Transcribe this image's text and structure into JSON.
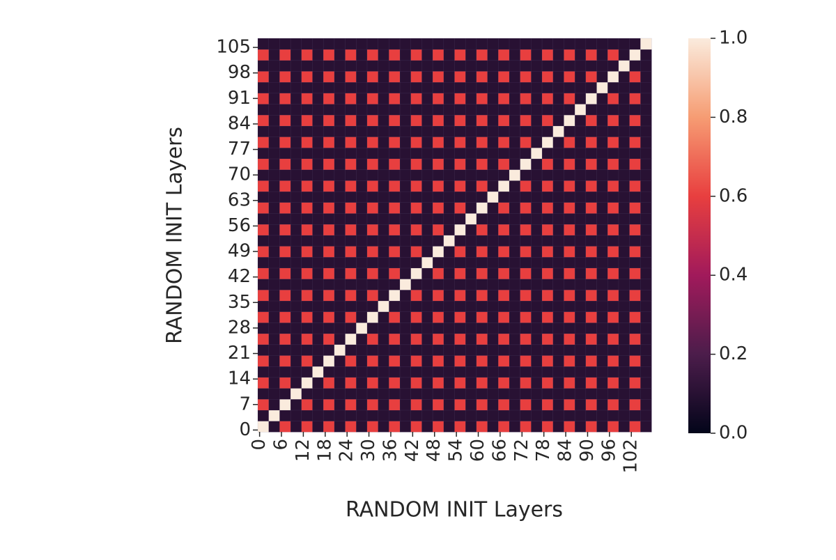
{
  "chart_data": {
    "type": "heatmap",
    "xlabel": "RANDOM INIT Layers",
    "ylabel": "RANDOM INIT Layers",
    "colormap": "rocket",
    "clim": [
      0,
      1
    ],
    "cticks": [
      {
        "value": 0,
        "label": "0.0"
      },
      0.2,
      0.4,
      0.6,
      0.8,
      {
        "value": 1,
        "label": "1.0"
      }
    ],
    "xlim": [
      0,
      108
    ],
    "ylim": [
      0,
      108
    ],
    "xticks": [
      0,
      6,
      12,
      18,
      24,
      30,
      36,
      42,
      48,
      54,
      60,
      66,
      72,
      78,
      84,
      90,
      96,
      102
    ],
    "yticks": [
      0,
      7,
      14,
      21,
      28,
      35,
      42,
      49,
      56,
      63,
      70,
      77,
      84,
      91,
      98,
      105
    ],
    "z": [
      [
        1,
        0.1,
        0.6,
        0.1,
        0.6,
        0.1,
        0.6,
        0.1,
        0.6,
        0.1,
        0.6,
        0.1,
        0.6,
        0.1,
        0.6,
        0.1,
        0.6,
        0.1,
        0.6,
        0.1,
        0.6,
        0.1,
        0.6,
        0.1,
        0.6,
        0.1,
        0.6,
        0.1,
        0.6,
        0.1,
        0.6,
        0.1,
        0.6,
        0.1,
        0.6,
        0.1
      ],
      [
        0.1,
        1,
        0.1,
        0.1,
        0.1,
        0.1,
        0.1,
        0.1,
        0.1,
        0.1,
        0.1,
        0.1,
        0.1,
        0.1,
        0.1,
        0.1,
        0.1,
        0.1,
        0.1,
        0.1,
        0.1,
        0.1,
        0.1,
        0.1,
        0.1,
        0.1,
        0.1,
        0.1,
        0.1,
        0.1,
        0.1,
        0.1,
        0.1,
        0.1,
        0.1,
        0.1
      ],
      [
        0.6,
        0.1,
        1,
        0.1,
        0.6,
        0.1,
        0.6,
        0.1,
        0.6,
        0.1,
        0.6,
        0.1,
        0.6,
        0.1,
        0.6,
        0.1,
        0.6,
        0.1,
        0.6,
        0.1,
        0.6,
        0.1,
        0.6,
        0.1,
        0.6,
        0.1,
        0.6,
        0.1,
        0.6,
        0.1,
        0.6,
        0.1,
        0.6,
        0.1,
        0.6,
        0.1
      ],
      [
        0.1,
        0.1,
        0.1,
        1,
        0.1,
        0.1,
        0.1,
        0.1,
        0.1,
        0.1,
        0.1,
        0.1,
        0.1,
        0.1,
        0.1,
        0.1,
        0.1,
        0.1,
        0.1,
        0.1,
        0.1,
        0.1,
        0.1,
        0.1,
        0.1,
        0.1,
        0.1,
        0.1,
        0.1,
        0.1,
        0.1,
        0.1,
        0.1,
        0.1,
        0.1,
        0.1
      ],
      [
        0.6,
        0.1,
        0.6,
        0.1,
        1,
        0.1,
        0.6,
        0.1,
        0.6,
        0.1,
        0.6,
        0.1,
        0.6,
        0.1,
        0.6,
        0.1,
        0.6,
        0.1,
        0.6,
        0.1,
        0.6,
        0.1,
        0.6,
        0.1,
        0.6,
        0.1,
        0.6,
        0.1,
        0.6,
        0.1,
        0.6,
        0.1,
        0.6,
        0.1,
        0.6,
        0.1
      ],
      [
        0.1,
        0.1,
        0.1,
        0.1,
        0.1,
        1,
        0.1,
        0.1,
        0.1,
        0.1,
        0.1,
        0.1,
        0.1,
        0.1,
        0.1,
        0.1,
        0.1,
        0.1,
        0.1,
        0.1,
        0.1,
        0.1,
        0.1,
        0.1,
        0.1,
        0.1,
        0.1,
        0.1,
        0.1,
        0.1,
        0.1,
        0.1,
        0.1,
        0.1,
        0.1,
        0.1
      ],
      [
        0.6,
        0.1,
        0.6,
        0.1,
        0.6,
        0.1,
        1,
        0.1,
        0.6,
        0.1,
        0.6,
        0.1,
        0.6,
        0.1,
        0.6,
        0.1,
        0.6,
        0.1,
        0.6,
        0.1,
        0.6,
        0.1,
        0.6,
        0.1,
        0.6,
        0.1,
        0.6,
        0.1,
        0.6,
        0.1,
        0.6,
        0.1,
        0.6,
        0.1,
        0.6,
        0.1
      ],
      [
        0.1,
        0.1,
        0.1,
        0.1,
        0.1,
        0.1,
        0.1,
        1,
        0.1,
        0.1,
        0.1,
        0.1,
        0.1,
        0.1,
        0.1,
        0.1,
        0.1,
        0.1,
        0.1,
        0.1,
        0.1,
        0.1,
        0.1,
        0.1,
        0.1,
        0.1,
        0.1,
        0.1,
        0.1,
        0.1,
        0.1,
        0.1,
        0.1,
        0.1,
        0.1,
        0.1
      ],
      [
        0.6,
        0.1,
        0.6,
        0.1,
        0.6,
        0.1,
        0.6,
        0.1,
        1,
        0.1,
        0.6,
        0.1,
        0.6,
        0.1,
        0.6,
        0.1,
        0.6,
        0.1,
        0.6,
        0.1,
        0.6,
        0.1,
        0.6,
        0.1,
        0.6,
        0.1,
        0.6,
        0.1,
        0.6,
        0.1,
        0.6,
        0.1,
        0.6,
        0.1,
        0.6,
        0.1
      ],
      [
        0.1,
        0.1,
        0.1,
        0.1,
        0.1,
        0.1,
        0.1,
        0.1,
        0.1,
        1,
        0.1,
        0.1,
        0.1,
        0.1,
        0.1,
        0.1,
        0.1,
        0.1,
        0.1,
        0.1,
        0.1,
        0.1,
        0.1,
        0.1,
        0.1,
        0.1,
        0.1,
        0.1,
        0.1,
        0.1,
        0.1,
        0.1,
        0.1,
        0.1,
        0.1,
        0.1
      ],
      [
        0.6,
        0.1,
        0.6,
        0.1,
        0.6,
        0.1,
        0.6,
        0.1,
        0.6,
        0.1,
        1,
        0.1,
        0.6,
        0.1,
        0.6,
        0.1,
        0.6,
        0.1,
        0.6,
        0.1,
        0.6,
        0.1,
        0.6,
        0.1,
        0.6,
        0.1,
        0.6,
        0.1,
        0.6,
        0.1,
        0.6,
        0.1,
        0.6,
        0.1,
        0.6,
        0.1
      ],
      [
        0.1,
        0.1,
        0.1,
        0.1,
        0.1,
        0.1,
        0.1,
        0.1,
        0.1,
        0.1,
        0.1,
        1,
        0.1,
        0.1,
        0.1,
        0.1,
        0.1,
        0.1,
        0.1,
        0.1,
        0.1,
        0.1,
        0.1,
        0.1,
        0.1,
        0.1,
        0.1,
        0.1,
        0.1,
        0.1,
        0.1,
        0.1,
        0.1,
        0.1,
        0.1,
        0.1
      ],
      [
        0.6,
        0.1,
        0.6,
        0.1,
        0.6,
        0.1,
        0.6,
        0.1,
        0.6,
        0.1,
        0.6,
        0.1,
        1,
        0.1,
        0.6,
        0.1,
        0.6,
        0.1,
        0.6,
        0.1,
        0.6,
        0.1,
        0.6,
        0.1,
        0.6,
        0.1,
        0.6,
        0.1,
        0.6,
        0.1,
        0.6,
        0.1,
        0.6,
        0.1,
        0.6,
        0.1
      ],
      [
        0.1,
        0.1,
        0.1,
        0.1,
        0.1,
        0.1,
        0.1,
        0.1,
        0.1,
        0.1,
        0.1,
        0.1,
        0.1,
        1,
        0.1,
        0.1,
        0.1,
        0.1,
        0.1,
        0.1,
        0.1,
        0.1,
        0.1,
        0.1,
        0.1,
        0.1,
        0.1,
        0.1,
        0.1,
        0.1,
        0.1,
        0.1,
        0.1,
        0.1,
        0.1,
        0.1
      ],
      [
        0.6,
        0.1,
        0.6,
        0.1,
        0.6,
        0.1,
        0.6,
        0.1,
        0.6,
        0.1,
        0.6,
        0.1,
        0.6,
        0.1,
        1,
        0.1,
        0.6,
        0.1,
        0.6,
        0.1,
        0.6,
        0.1,
        0.6,
        0.1,
        0.6,
        0.1,
        0.6,
        0.1,
        0.6,
        0.1,
        0.6,
        0.1,
        0.6,
        0.1,
        0.6,
        0.1
      ],
      [
        0.1,
        0.1,
        0.1,
        0.1,
        0.1,
        0.1,
        0.1,
        0.1,
        0.1,
        0.1,
        0.1,
        0.1,
        0.1,
        0.1,
        0.1,
        1,
        0.1,
        0.1,
        0.1,
        0.1,
        0.1,
        0.1,
        0.1,
        0.1,
        0.1,
        0.1,
        0.1,
        0.1,
        0.1,
        0.1,
        0.1,
        0.1,
        0.1,
        0.1,
        0.1,
        0.1
      ],
      [
        0.6,
        0.1,
        0.6,
        0.1,
        0.6,
        0.1,
        0.6,
        0.1,
        0.6,
        0.1,
        0.6,
        0.1,
        0.6,
        0.1,
        0.6,
        0.1,
        1,
        0.1,
        0.6,
        0.1,
        0.6,
        0.1,
        0.6,
        0.1,
        0.6,
        0.1,
        0.6,
        0.1,
        0.6,
        0.1,
        0.6,
        0.1,
        0.6,
        0.1,
        0.6,
        0.1
      ],
      [
        0.1,
        0.1,
        0.1,
        0.1,
        0.1,
        0.1,
        0.1,
        0.1,
        0.1,
        0.1,
        0.1,
        0.1,
        0.1,
        0.1,
        0.1,
        0.1,
        0.1,
        1,
        0.1,
        0.1,
        0.1,
        0.1,
        0.1,
        0.1,
        0.1,
        0.1,
        0.1,
        0.1,
        0.1,
        0.1,
        0.1,
        0.1,
        0.1,
        0.1,
        0.1,
        0.1
      ],
      [
        0.6,
        0.1,
        0.6,
        0.1,
        0.6,
        0.1,
        0.6,
        0.1,
        0.6,
        0.1,
        0.6,
        0.1,
        0.6,
        0.1,
        0.6,
        0.1,
        0.6,
        0.1,
        1,
        0.1,
        0.6,
        0.1,
        0.6,
        0.1,
        0.6,
        0.1,
        0.6,
        0.1,
        0.6,
        0.1,
        0.6,
        0.1,
        0.6,
        0.1,
        0.6,
        0.1
      ],
      [
        0.1,
        0.1,
        0.1,
        0.1,
        0.1,
        0.1,
        0.1,
        0.1,
        0.1,
        0.1,
        0.1,
        0.1,
        0.1,
        0.1,
        0.1,
        0.1,
        0.1,
        0.1,
        0.1,
        1,
        0.1,
        0.1,
        0.1,
        0.1,
        0.1,
        0.1,
        0.1,
        0.1,
        0.1,
        0.1,
        0.1,
        0.1,
        0.1,
        0.1,
        0.1,
        0.1
      ],
      [
        0.6,
        0.1,
        0.6,
        0.1,
        0.6,
        0.1,
        0.6,
        0.1,
        0.6,
        0.1,
        0.6,
        0.1,
        0.6,
        0.1,
        0.6,
        0.1,
        0.6,
        0.1,
        0.6,
        0.1,
        1,
        0.1,
        0.6,
        0.1,
        0.6,
        0.1,
        0.6,
        0.1,
        0.6,
        0.1,
        0.6,
        0.1,
        0.6,
        0.1,
        0.6,
        0.1
      ],
      [
        0.1,
        0.1,
        0.1,
        0.1,
        0.1,
        0.1,
        0.1,
        0.1,
        0.1,
        0.1,
        0.1,
        0.1,
        0.1,
        0.1,
        0.1,
        0.1,
        0.1,
        0.1,
        0.1,
        0.1,
        0.1,
        1,
        0.1,
        0.1,
        0.1,
        0.1,
        0.1,
        0.1,
        0.1,
        0.1,
        0.1,
        0.1,
        0.1,
        0.1,
        0.1,
        0.1
      ],
      [
        0.6,
        0.1,
        0.6,
        0.1,
        0.6,
        0.1,
        0.6,
        0.1,
        0.6,
        0.1,
        0.6,
        0.1,
        0.6,
        0.1,
        0.6,
        0.1,
        0.6,
        0.1,
        0.6,
        0.1,
        0.6,
        0.1,
        1,
        0.1,
        0.6,
        0.1,
        0.6,
        0.1,
        0.6,
        0.1,
        0.6,
        0.1,
        0.6,
        0.1,
        0.6,
        0.1
      ],
      [
        0.1,
        0.1,
        0.1,
        0.1,
        0.1,
        0.1,
        0.1,
        0.1,
        0.1,
        0.1,
        0.1,
        0.1,
        0.1,
        0.1,
        0.1,
        0.1,
        0.1,
        0.1,
        0.1,
        0.1,
        0.1,
        0.1,
        0.1,
        1,
        0.1,
        0.1,
        0.1,
        0.1,
        0.1,
        0.1,
        0.1,
        0.1,
        0.1,
        0.1,
        0.1,
        0.1
      ],
      [
        0.6,
        0.1,
        0.6,
        0.1,
        0.6,
        0.1,
        0.6,
        0.1,
        0.6,
        0.1,
        0.6,
        0.1,
        0.6,
        0.1,
        0.6,
        0.1,
        0.6,
        0.1,
        0.6,
        0.1,
        0.6,
        0.1,
        0.6,
        0.1,
        1,
        0.1,
        0.6,
        0.1,
        0.6,
        0.1,
        0.6,
        0.1,
        0.6,
        0.1,
        0.6,
        0.1
      ],
      [
        0.1,
        0.1,
        0.1,
        0.1,
        0.1,
        0.1,
        0.1,
        0.1,
        0.1,
        0.1,
        0.1,
        0.1,
        0.1,
        0.1,
        0.1,
        0.1,
        0.1,
        0.1,
        0.1,
        0.1,
        0.1,
        0.1,
        0.1,
        0.1,
        0.1,
        1,
        0.1,
        0.1,
        0.1,
        0.1,
        0.1,
        0.1,
        0.1,
        0.1,
        0.1,
        0.1
      ],
      [
        0.6,
        0.1,
        0.6,
        0.1,
        0.6,
        0.1,
        0.6,
        0.1,
        0.6,
        0.1,
        0.6,
        0.1,
        0.6,
        0.1,
        0.6,
        0.1,
        0.6,
        0.1,
        0.6,
        0.1,
        0.6,
        0.1,
        0.6,
        0.1,
        0.6,
        0.1,
        1,
        0.1,
        0.6,
        0.1,
        0.6,
        0.1,
        0.6,
        0.1,
        0.6,
        0.1
      ],
      [
        0.1,
        0.1,
        0.1,
        0.1,
        0.1,
        0.1,
        0.1,
        0.1,
        0.1,
        0.1,
        0.1,
        0.1,
        0.1,
        0.1,
        0.1,
        0.1,
        0.1,
        0.1,
        0.1,
        0.1,
        0.1,
        0.1,
        0.1,
        0.1,
        0.1,
        0.1,
        0.1,
        1,
        0.1,
        0.1,
        0.1,
        0.1,
        0.1,
        0.1,
        0.1,
        0.1
      ],
      [
        0.6,
        0.1,
        0.6,
        0.1,
        0.6,
        0.1,
        0.6,
        0.1,
        0.6,
        0.1,
        0.6,
        0.1,
        0.6,
        0.1,
        0.6,
        0.1,
        0.6,
        0.1,
        0.6,
        0.1,
        0.6,
        0.1,
        0.6,
        0.1,
        0.6,
        0.1,
        0.6,
        0.1,
        1,
        0.1,
        0.6,
        0.1,
        0.6,
        0.1,
        0.6,
        0.1
      ],
      [
        0.1,
        0.1,
        0.1,
        0.1,
        0.1,
        0.1,
        0.1,
        0.1,
        0.1,
        0.1,
        0.1,
        0.1,
        0.1,
        0.1,
        0.1,
        0.1,
        0.1,
        0.1,
        0.1,
        0.1,
        0.1,
        0.1,
        0.1,
        0.1,
        0.1,
        0.1,
        0.1,
        0.1,
        0.1,
        1,
        0.1,
        0.1,
        0.1,
        0.1,
        0.1,
        0.1
      ],
      [
        0.6,
        0.1,
        0.6,
        0.1,
        0.6,
        0.1,
        0.6,
        0.1,
        0.6,
        0.1,
        0.6,
        0.1,
        0.6,
        0.1,
        0.6,
        0.1,
        0.6,
        0.1,
        0.6,
        0.1,
        0.6,
        0.1,
        0.6,
        0.1,
        0.6,
        0.1,
        0.6,
        0.1,
        0.6,
        0.1,
        1,
        0.1,
        0.6,
        0.1,
        0.6,
        0.1
      ],
      [
        0.1,
        0.1,
        0.1,
        0.1,
        0.1,
        0.1,
        0.1,
        0.1,
        0.1,
        0.1,
        0.1,
        0.1,
        0.1,
        0.1,
        0.1,
        0.1,
        0.1,
        0.1,
        0.1,
        0.1,
        0.1,
        0.1,
        0.1,
        0.1,
        0.1,
        0.1,
        0.1,
        0.1,
        0.1,
        0.1,
        0.1,
        1,
        0.1,
        0.1,
        0.1,
        0.1
      ],
      [
        0.6,
        0.1,
        0.6,
        0.1,
        0.6,
        0.1,
        0.6,
        0.1,
        0.6,
        0.1,
        0.6,
        0.1,
        0.6,
        0.1,
        0.6,
        0.1,
        0.6,
        0.1,
        0.6,
        0.1,
        0.6,
        0.1,
        0.6,
        0.1,
        0.6,
        0.1,
        0.6,
        0.1,
        0.6,
        0.1,
        0.6,
        0.1,
        1,
        0.1,
        0.6,
        0.1
      ],
      [
        0.1,
        0.1,
        0.1,
        0.1,
        0.1,
        0.1,
        0.1,
        0.1,
        0.1,
        0.1,
        0.1,
        0.1,
        0.1,
        0.1,
        0.1,
        0.1,
        0.1,
        0.1,
        0.1,
        0.1,
        0.1,
        0.1,
        0.1,
        0.1,
        0.1,
        0.1,
        0.1,
        0.1,
        0.1,
        0.1,
        0.1,
        0.1,
        0.1,
        1,
        0.1,
        0.1
      ],
      [
        0.6,
        0.1,
        0.6,
        0.1,
        0.6,
        0.1,
        0.6,
        0.1,
        0.6,
        0.1,
        0.6,
        0.1,
        0.6,
        0.1,
        0.6,
        0.1,
        0.6,
        0.1,
        0.6,
        0.1,
        0.6,
        0.1,
        0.6,
        0.1,
        0.6,
        0.1,
        0.6,
        0.1,
        0.6,
        0.1,
        0.6,
        0.1,
        0.6,
        0.1,
        1,
        0.1
      ],
      [
        0.1,
        0.1,
        0.1,
        0.1,
        0.1,
        0.1,
        0.1,
        0.1,
        0.1,
        0.1,
        0.1,
        0.1,
        0.1,
        0.1,
        0.1,
        0.1,
        0.1,
        0.1,
        0.1,
        0.1,
        0.1,
        0.1,
        0.1,
        0.1,
        0.1,
        0.1,
        0.1,
        0.1,
        0.1,
        0.1,
        0.1,
        0.1,
        0.1,
        0.1,
        0.1,
        1
      ]
    ]
  }
}
